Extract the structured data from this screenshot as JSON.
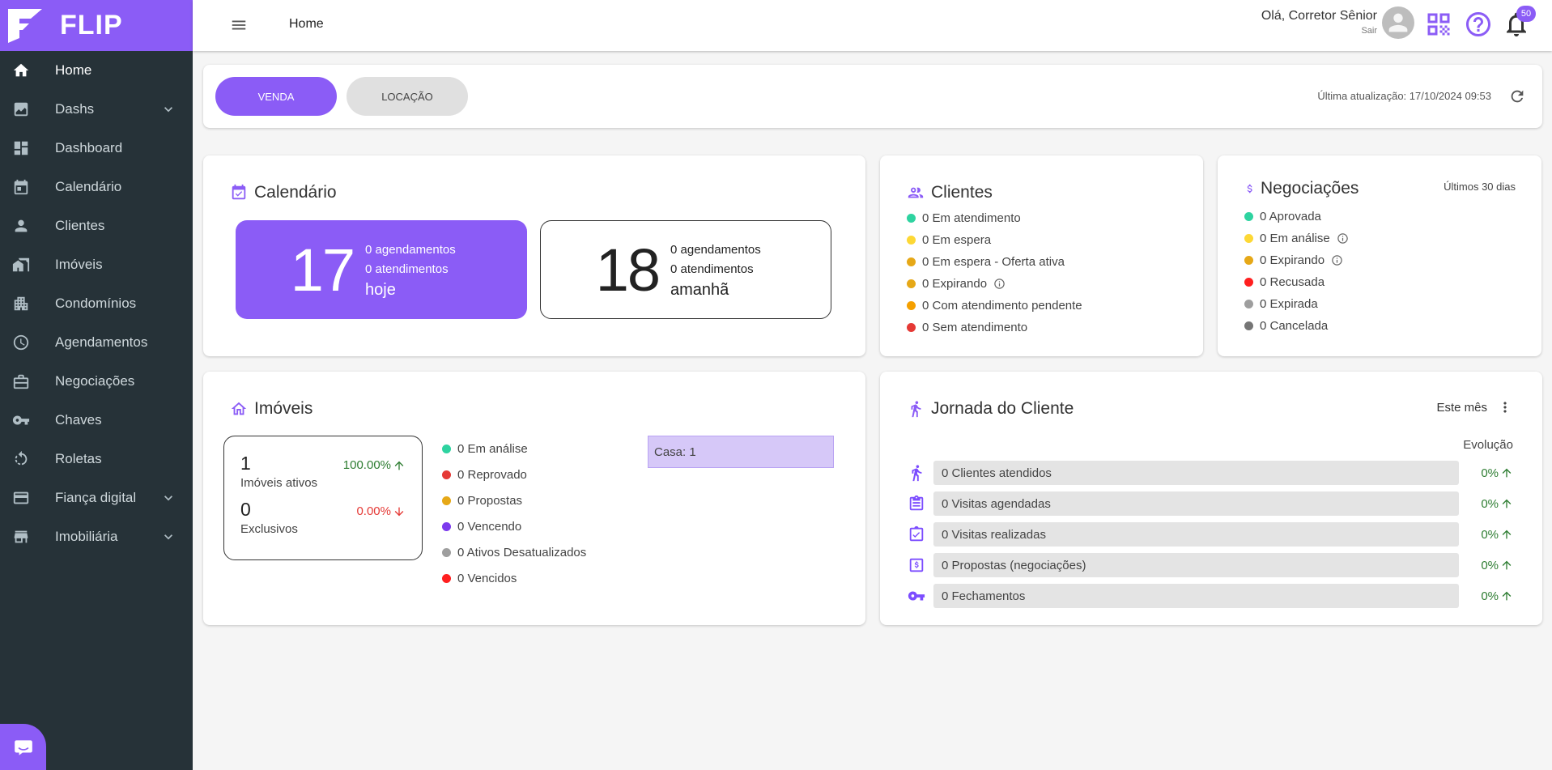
{
  "brand": {
    "name": "FLIP",
    "color": "#8b5cf6"
  },
  "sidebar": {
    "items": [
      {
        "label": "Home",
        "icon": "home-icon",
        "active": true
      },
      {
        "label": "Dashs",
        "icon": "chart-icon",
        "expandable": true
      },
      {
        "label": "Dashboard",
        "icon": "dashboard-icon"
      },
      {
        "label": "Calendário",
        "icon": "calendar-icon"
      },
      {
        "label": "Clientes",
        "icon": "person-icon"
      },
      {
        "label": "Imóveis",
        "icon": "buildings-icon"
      },
      {
        "label": "Condomínios",
        "icon": "apartment-icon"
      },
      {
        "label": "Agendamentos",
        "icon": "clock-icon"
      },
      {
        "label": "Negociações",
        "icon": "briefcase-icon"
      },
      {
        "label": "Chaves",
        "icon": "key-icon"
      },
      {
        "label": "Roletas",
        "icon": "rotate-icon"
      },
      {
        "label": "Fiança digital",
        "icon": "credit-card-icon",
        "expandable": true
      },
      {
        "label": "Imobiliária",
        "icon": "store-icon",
        "expandable": true
      }
    ]
  },
  "topbar": {
    "breadcrumb": "Home",
    "greeting": "Olá, Corretor Sênior",
    "logout": "Sair",
    "notifications_count": "50"
  },
  "tabs": {
    "venda": "VENDA",
    "locacao": "LOCAÇÃO",
    "active": "venda",
    "updated": "Última atualização: 17/10/2024 09:53"
  },
  "calendario": {
    "title": "Calendário",
    "today": {
      "day": "17",
      "agendamentos": "0 agendamentos",
      "atendimentos": "0 atendimentos",
      "label": "hoje"
    },
    "tomorrow": {
      "day": "18",
      "agendamentos": "0 agendamentos",
      "atendimentos": "0 atendimentos",
      "label": "amanhã"
    }
  },
  "clientes": {
    "title": "Clientes",
    "items": [
      {
        "label": "0 Em atendimento",
        "color": "#2ed3a0"
      },
      {
        "label": "0 Em espera",
        "color": "#fdd835"
      },
      {
        "label": "0 Em espera - Oferta ativa",
        "color": "#e6a817"
      },
      {
        "label": "0 Expirando",
        "color": "#e6a817",
        "info": true
      },
      {
        "label": "0 Com atendimento pendente",
        "color": "#f5a000"
      },
      {
        "label": "0 Sem atendimento",
        "color": "#e53935"
      }
    ]
  },
  "negociacoes": {
    "title": "Negociações",
    "period": "Últimos 30 dias",
    "items": [
      {
        "label": "0 Aprovada",
        "color": "#2ed3a0"
      },
      {
        "label": "0 Em análise",
        "color": "#fdd835",
        "info": true
      },
      {
        "label": "0 Expirando",
        "color": "#e6a817",
        "info": true
      },
      {
        "label": "0 Recusada",
        "color": "#ff1f1f"
      },
      {
        "label": "0 Expirada",
        "color": "#9e9e9e"
      },
      {
        "label": "0 Cancelada",
        "color": "#757575"
      }
    ]
  },
  "imoveis": {
    "title": "Imóveis",
    "ativos": {
      "value": "1",
      "label": "Imóveis ativos",
      "pct": "100.00%"
    },
    "exclusivos": {
      "value": "0",
      "label": "Exclusivos",
      "pct": "0.00%"
    },
    "status": [
      {
        "label": "0 Em análise",
        "color": "#2ed3a0"
      },
      {
        "label": "0 Reprovado",
        "color": "#e53935"
      },
      {
        "label": "0 Propostas",
        "color": "#e6a817"
      },
      {
        "label": "0 Vencendo",
        "color": "#7c3aed"
      },
      {
        "label": "0 Ativos Desatualizados",
        "color": "#9e9e9e"
      },
      {
        "label": "0 Vencidos",
        "color": "#ff1f1f"
      }
    ],
    "types": [
      {
        "label": "Casa: 1",
        "value": 1
      }
    ]
  },
  "jornada": {
    "title": "Jornada do Cliente",
    "period": "Este mês",
    "evolution_header": "Evolução",
    "rows": [
      {
        "label": "0 Clientes atendidos",
        "pct": "0%",
        "icon": "walking-person-icon"
      },
      {
        "label": "0 Visitas agendadas",
        "pct": "0%",
        "icon": "clipboard-icon"
      },
      {
        "label": "0 Visitas realizadas",
        "pct": "0%",
        "icon": "checked-calendar-icon"
      },
      {
        "label": "0 Propostas (negociações)",
        "pct": "0%",
        "icon": "money-doc-icon"
      },
      {
        "label": "0 Fechamentos",
        "pct": "0%",
        "icon": "key-icon"
      }
    ]
  }
}
